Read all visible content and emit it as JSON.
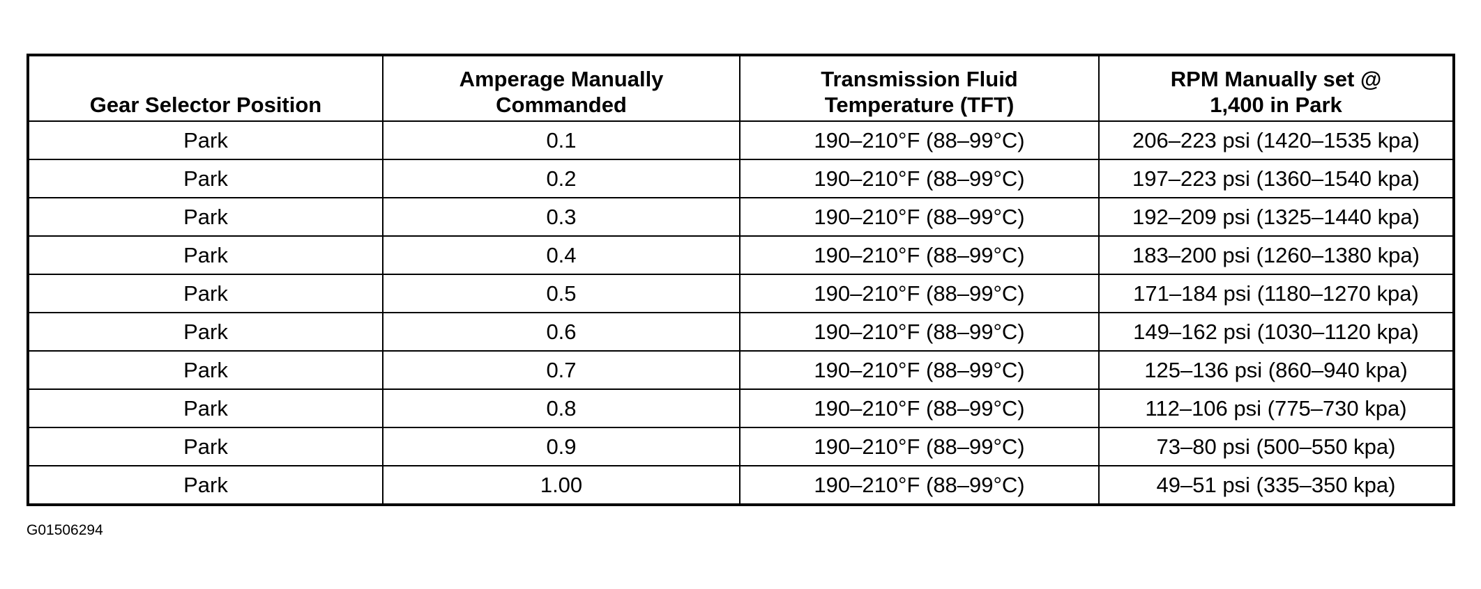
{
  "table": {
    "header": [
      [
        "Gear Selector Position"
      ],
      [
        "Amperage Manually",
        "Commanded"
      ],
      [
        "Transmission Fluid",
        "Temperature (TFT)"
      ],
      [
        "RPM Manually set @",
        "1,400 in Park"
      ]
    ],
    "rows": [
      [
        "Park",
        "0.1",
        "190–210°F (88–99°C)",
        "206–223 psi (1420–1535 kpa)"
      ],
      [
        "Park",
        "0.2",
        "190–210°F (88–99°C)",
        "197–223 psi (1360–1540 kpa)"
      ],
      [
        "Park",
        "0.3",
        "190–210°F (88–99°C)",
        "192–209 psi (1325–1440 kpa)"
      ],
      [
        "Park",
        "0.4",
        "190–210°F (88–99°C)",
        "183–200 psi (1260–1380 kpa)"
      ],
      [
        "Park",
        "0.5",
        "190–210°F (88–99°C)",
        "171–184 psi (1180–1270 kpa)"
      ],
      [
        "Park",
        "0.6",
        "190–210°F (88–99°C)",
        "149–162 psi (1030–1120 kpa)"
      ],
      [
        "Park",
        "0.7",
        "190–210°F (88–99°C)",
        "125–136 psi (860–940 kpa)"
      ],
      [
        "Park",
        "0.8",
        "190–210°F (88–99°C)",
        "112–106 psi (775–730 kpa)"
      ],
      [
        "Park",
        "0.9",
        "190–210°F (88–99°C)",
        "73–80 psi (500–550 kpa)"
      ],
      [
        "Park",
        "1.00",
        "190–210°F (88–99°C)",
        "49–51 psi (335–350 kpa)"
      ]
    ]
  },
  "figure_code": "G01506294"
}
